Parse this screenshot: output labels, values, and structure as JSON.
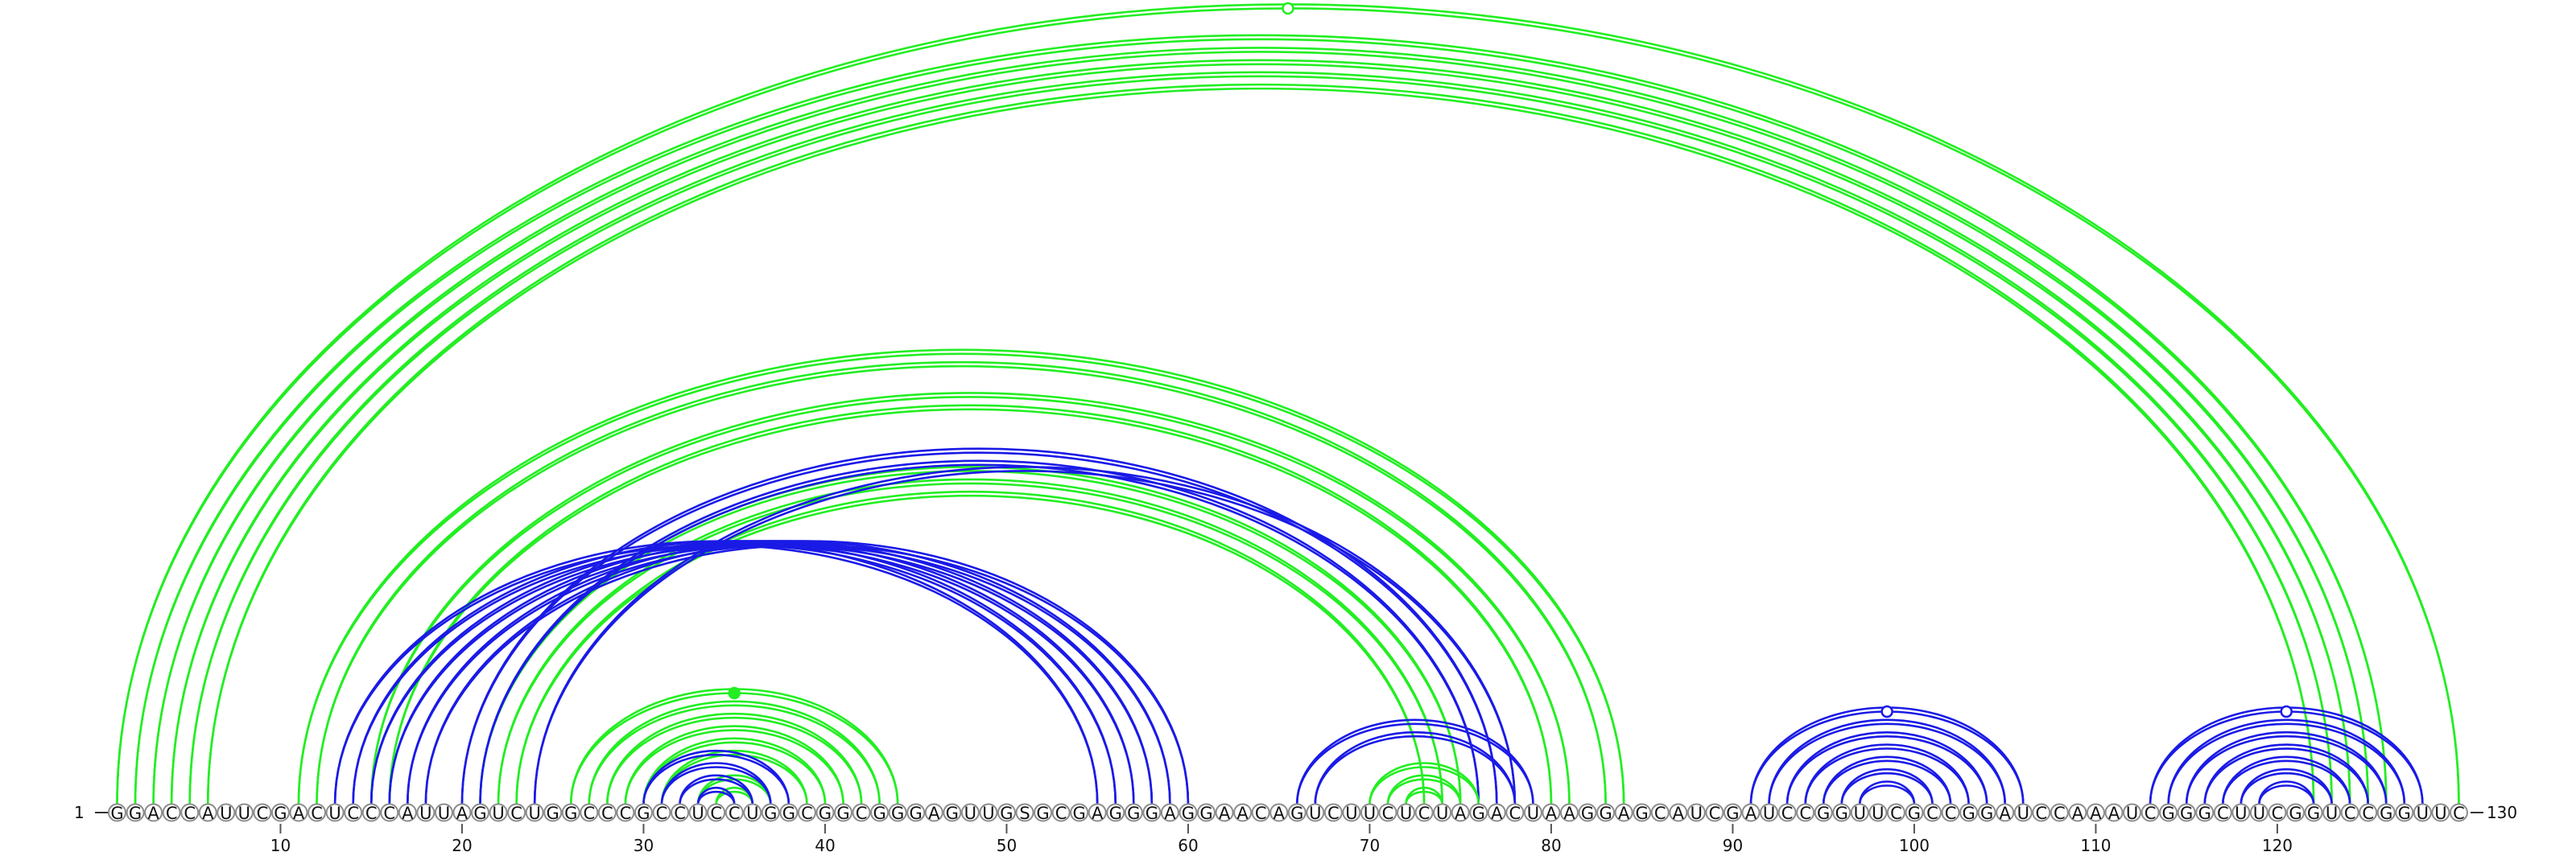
{
  "sequence": "GGACCAUUCGACUCCCAUUAGUCUGGCCCGCCUCCUGGCGGCGGGAGUUGSGCGAGGGAGGAACAGUCUUCUCUAGACUAAGGAGCAUCGAUCCGGUUCGCCGGAUCCAAAUCGGGCUUCGGUCCGGUUC",
  "start_label": "1",
  "end_label": "130",
  "tick_positions": [
    10,
    20,
    30,
    40,
    50,
    60,
    70,
    80,
    90,
    100,
    110,
    120
  ],
  "colors": {
    "green": "#22ee22",
    "blue": "#1a1ae6",
    "circle_stroke": "#8c8c8c"
  },
  "arc_sets": [
    {
      "color": "green",
      "lines": 2,
      "pairs": [
        [
          1,
          130
        ],
        [
          2,
          126
        ],
        [
          3,
          125
        ],
        [
          4,
          124
        ],
        [
          5,
          123
        ],
        [
          6,
          122
        ],
        [
          11,
          84
        ],
        [
          12,
          83
        ],
        [
          15,
          81
        ],
        [
          16,
          80
        ],
        [
          21,
          75
        ],
        [
          22,
          74
        ],
        [
          23,
          73
        ],
        [
          26,
          44
        ],
        [
          27,
          43
        ],
        [
          28,
          42
        ],
        [
          29,
          41
        ],
        [
          30,
          40
        ],
        [
          31,
          39
        ],
        [
          33,
          37
        ],
        [
          34,
          36
        ]
      ]
    },
    {
      "color": "blue",
      "lines": 2,
      "pairs": [
        [
          13,
          55
        ],
        [
          14,
          56
        ],
        [
          15,
          57
        ],
        [
          16,
          58
        ],
        [
          17,
          59
        ],
        [
          18,
          60
        ],
        [
          20,
          77
        ],
        [
          21,
          76
        ],
        [
          24,
          78
        ],
        [
          30,
          38
        ],
        [
          31,
          37
        ],
        [
          32,
          36
        ],
        [
          33,
          35
        ],
        [
          66,
          79
        ],
        [
          67,
          78
        ],
        [
          91,
          106
        ],
        [
          92,
          105
        ],
        [
          93,
          104
        ],
        [
          94,
          103
        ],
        [
          95,
          102
        ],
        [
          96,
          101
        ],
        [
          97,
          100
        ],
        [
          113,
          128
        ],
        [
          114,
          127
        ],
        [
          115,
          126
        ],
        [
          116,
          125
        ],
        [
          117,
          124
        ],
        [
          118,
          123
        ],
        [
          119,
          122
        ]
      ]
    },
    {
      "color": "green",
      "lines": 2,
      "pairs": [
        [
          70,
          76
        ],
        [
          71,
          75
        ],
        [
          72,
          74
        ]
      ]
    }
  ],
  "markers": [
    {
      "color": "green",
      "position": 65.5,
      "filled": false
    },
    {
      "color": "green",
      "position": 35,
      "filled": true
    },
    {
      "color": "blue",
      "position": 98.5,
      "filled": false
    },
    {
      "color": "blue",
      "position": 120.5,
      "filled": false
    }
  ]
}
